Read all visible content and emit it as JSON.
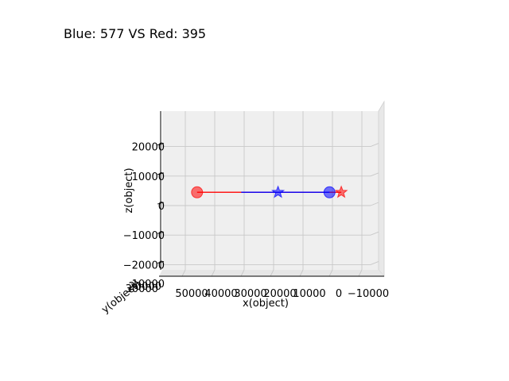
{
  "chart_data": {
    "type": "scatter",
    "title": "Blue: 577 VS Red: 395",
    "xlabel": "x(object)",
    "ylabel": "y(object)",
    "zlabel": "z(object)",
    "x_ticks": [
      "50000",
      "40000",
      "30000",
      "20000",
      "10000",
      "0",
      "−10000"
    ],
    "y_ticks": [
      "10000",
      "20000",
      "30000"
    ],
    "z_ticks": [
      "20000",
      "10000",
      "0",
      "−10000",
      "−20000"
    ],
    "xlim": [
      52000,
      -13000
    ],
    "zlim": [
      -25000,
      30000
    ],
    "grid": true,
    "series": [
      {
        "name": "",
        "color": "#ff0000",
        "path": [
          {
            "x": 46000,
            "z": 4500
          },
          {
            "x": -3000,
            "z": 4500
          }
        ],
        "circle": {
          "x": 46000,
          "z": 4500
        },
        "star": {
          "x": -3000,
          "z": 4500
        }
      },
      {
        "name": "",
        "color": "#0000ff",
        "path": [
          {
            "x": 1000,
            "z": 4500
          },
          {
            "x": 31000,
            "z": 4500
          }
        ],
        "circle": {
          "x": 1000,
          "z": 4500
        },
        "star": {
          "x": 18500,
          "z": 4500
        }
      }
    ]
  }
}
